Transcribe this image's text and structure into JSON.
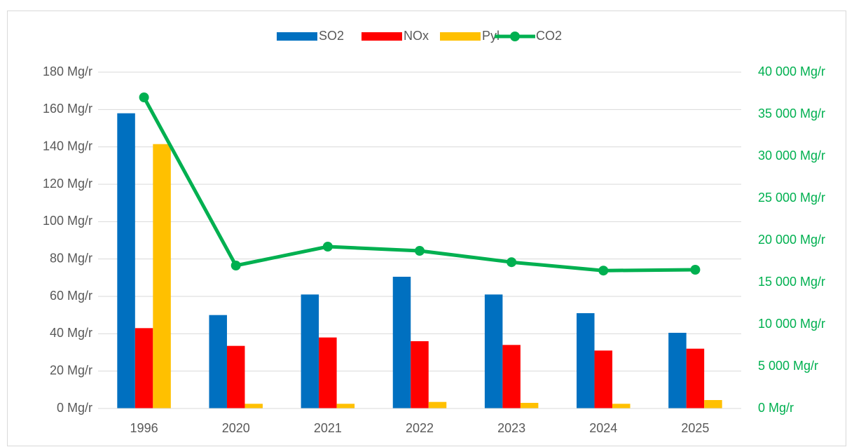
{
  "chart_data": {
    "type": "bar",
    "categories": [
      "1996",
      "2020",
      "2021",
      "2022",
      "2023",
      "2024",
      "2025"
    ],
    "series": [
      {
        "name": "SO2",
        "color": "#0070c0",
        "values": [
          158,
          50,
          61,
          70.5,
          61,
          51,
          40.5
        ]
      },
      {
        "name": "NOx",
        "color": "#ff0000",
        "values": [
          43,
          33.5,
          38,
          36,
          34,
          31,
          32
        ]
      },
      {
        "name": "Pył",
        "color": "#ffc000",
        "values": [
          141.5,
          2.5,
          2.5,
          3.5,
          3,
          2.5,
          4.5
        ]
      },
      {
        "name": "CO2",
        "color": "#00b050",
        "type": "line",
        "axis": "y2",
        "values": [
          37000,
          17000,
          19250,
          18750,
          17400,
          16400,
          16500
        ]
      }
    ],
    "ylim": [
      0,
      180
    ],
    "yticks": [
      {
        "value": 0,
        "label": "0 Mg/r"
      },
      {
        "value": 20,
        "label": "20 Mg/r"
      },
      {
        "value": 40,
        "label": "40 Mg/r"
      },
      {
        "value": 60,
        "label": "60 Mg/r"
      },
      {
        "value": 80,
        "label": "80 Mg/r"
      },
      {
        "value": 100,
        "label": "100 Mg/r"
      },
      {
        "value": 120,
        "label": "120 Mg/r"
      },
      {
        "value": 140,
        "label": "140 Mg/r"
      },
      {
        "value": 160,
        "label": "160 Mg/r"
      },
      {
        "value": 180,
        "label": "180 Mg/r"
      }
    ],
    "y2lim": [
      0,
      40000
    ],
    "y2ticks": [
      {
        "value": 0,
        "label": "0 Mg/r"
      },
      {
        "value": 5000,
        "label": "5 000 Mg/r"
      },
      {
        "value": 10000,
        "label": "10 000 Mg/r"
      },
      {
        "value": 15000,
        "label": "15 000 Mg/r"
      },
      {
        "value": 20000,
        "label": "20 000 Mg/r"
      },
      {
        "value": 25000,
        "label": "25 000 Mg/r"
      },
      {
        "value": 30000,
        "label": "30 000 Mg/r"
      },
      {
        "value": 35000,
        "label": "35 000 Mg/r"
      },
      {
        "value": 40000,
        "label": "40 000 Mg/r"
      }
    ],
    "y2color": "#00b050",
    "grid": true,
    "legend": "top"
  }
}
